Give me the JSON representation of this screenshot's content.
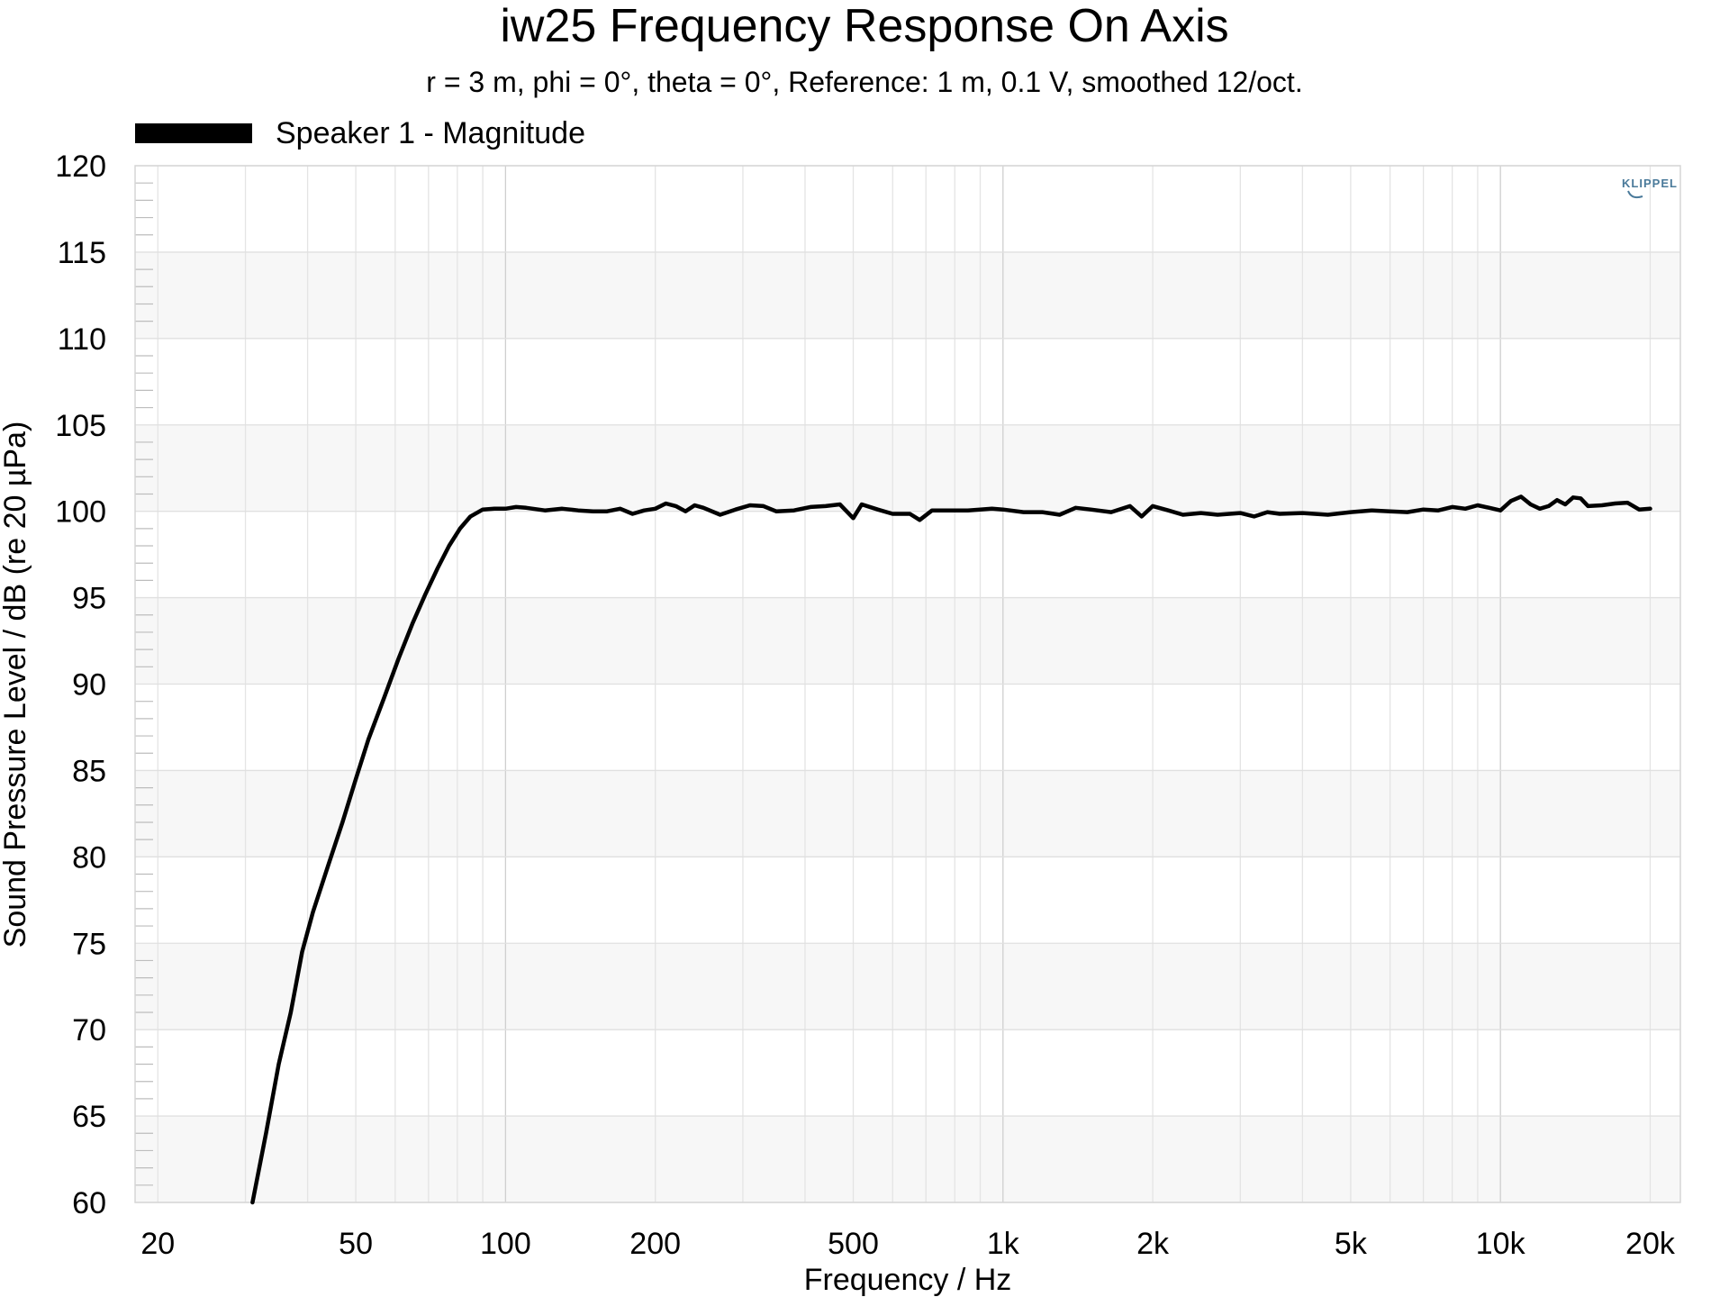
{
  "chart_data": {
    "type": "line",
    "title": "iw25 Frequency Response On Axis",
    "subtitle": "r = 3 m, phi = 0°, theta = 0°, Reference: 1 m, 0.1 V, smoothed 12/oct.",
    "xlabel": "Frequency / Hz",
    "ylabel": "Sound Pressure Level / dB (re 20 µPa)",
    "x_scale": "log",
    "xlim": [
      18,
      23000
    ],
    "ylim": [
      60,
      120
    ],
    "grid": true,
    "legend_position": "top-left",
    "logo": "KLIPPEL",
    "x_ticks": [
      {
        "value": 20,
        "label": "20"
      },
      {
        "value": 50,
        "label": "50"
      },
      {
        "value": 100,
        "label": "100"
      },
      {
        "value": 200,
        "label": "200"
      },
      {
        "value": 500,
        "label": "500"
      },
      {
        "value": 1000,
        "label": "1k"
      },
      {
        "value": 2000,
        "label": "2k"
      },
      {
        "value": 5000,
        "label": "5k"
      },
      {
        "value": 10000,
        "label": "10k"
      },
      {
        "value": 20000,
        "label": "20k"
      }
    ],
    "y_ticks": [
      60,
      65,
      70,
      75,
      80,
      85,
      90,
      95,
      100,
      105,
      110,
      115,
      120
    ],
    "series": [
      {
        "name": "Speaker 1 - Magnitude",
        "color": "#000000",
        "x": [
          31,
          33,
          35,
          37,
          39,
          41,
          44,
          47,
          50,
          53,
          57,
          61,
          65,
          69,
          73,
          77,
          81,
          85,
          90,
          95,
          100,
          105,
          110,
          120,
          130,
          140,
          150,
          160,
          170,
          180,
          190,
          200,
          210,
          220,
          230,
          240,
          250,
          270,
          290,
          310,
          330,
          350,
          380,
          410,
          440,
          470,
          500,
          520,
          560,
          600,
          650,
          680,
          720,
          780,
          850,
          900,
          950,
          1000,
          1100,
          1200,
          1300,
          1400,
          1500,
          1650,
          1800,
          1900,
          2000,
          2150,
          2300,
          2500,
          2700,
          3000,
          3200,
          3400,
          3600,
          4000,
          4500,
          5000,
          5500,
          6000,
          6500,
          7000,
          7500,
          8000,
          8500,
          9000,
          9500,
          10000,
          10500,
          11000,
          11500,
          12000,
          12500,
          13000,
          13500,
          14000,
          14500,
          15000,
          16000,
          17000,
          18000,
          19000,
          20000
        ],
        "y": [
          60,
          64,
          68,
          71,
          74.5,
          76.8,
          79.5,
          82,
          84.5,
          86.8,
          89.2,
          91.5,
          93.5,
          95.2,
          96.7,
          98,
          99,
          99.7,
          100.1,
          100.15,
          100.15,
          100.25,
          100.2,
          100.05,
          100.15,
          100.05,
          100,
          100,
          100.15,
          99.85,
          100.05,
          100.15,
          100.45,
          100.3,
          100.0,
          100.35,
          100.2,
          99.8,
          100.1,
          100.35,
          100.3,
          100.0,
          100.05,
          100.25,
          100.3,
          100.4,
          99.6,
          100.4,
          100.1,
          99.85,
          99.85,
          99.5,
          100.05,
          100.05,
          100.05,
          100.1,
          100.15,
          100.1,
          99.95,
          99.95,
          99.8,
          100.2,
          100.1,
          99.95,
          100.3,
          99.7,
          100.3,
          100.05,
          99.8,
          99.9,
          99.8,
          99.9,
          99.7,
          99.95,
          99.85,
          99.9,
          99.8,
          99.95,
          100.05,
          100.0,
          99.95,
          100.1,
          100.05,
          100.25,
          100.15,
          100.35,
          100.2,
          100.05,
          100.6,
          100.85,
          100.4,
          100.15,
          100.3,
          100.65,
          100.4,
          100.8,
          100.75,
          100.3,
          100.35,
          100.45,
          100.5,
          100.1,
          100.15
        ]
      }
    ]
  }
}
